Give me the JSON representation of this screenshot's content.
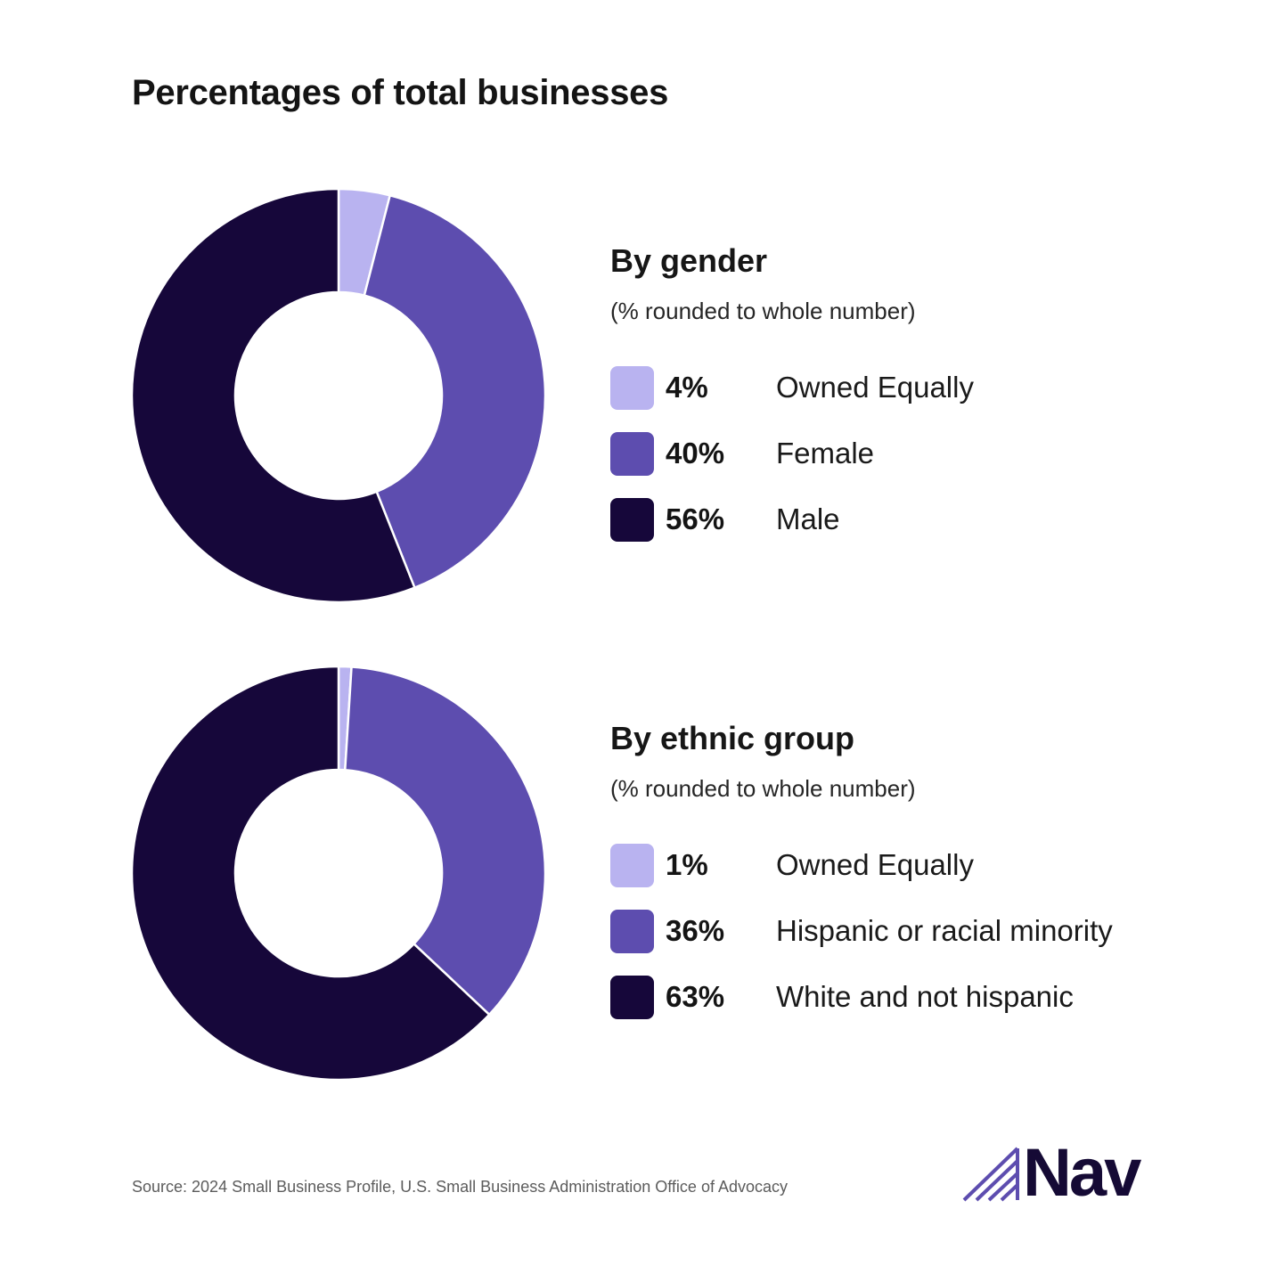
{
  "title": "Percentages of total businesses",
  "colors": {
    "owned_equally": "#b9b3f0",
    "middle": "#5d4daf",
    "majority": "#16073a"
  },
  "sections": [
    {
      "title": "By gender",
      "subtitle": "(% rounded to whole number)",
      "items": [
        {
          "pct": "4%",
          "label": "Owned Equally",
          "color": "#b9b3f0"
        },
        {
          "pct": "40%",
          "label": "Female",
          "color": "#5d4daf"
        },
        {
          "pct": "56%",
          "label": "Male",
          "color": "#16073a"
        }
      ]
    },
    {
      "title": "By ethnic group",
      "subtitle": "(% rounded to whole number)",
      "items": [
        {
          "pct": "1%",
          "label": "Owned Equally",
          "color": "#b9b3f0"
        },
        {
          "pct": "36%",
          "label": "Hispanic or racial minority",
          "color": "#5d4daf"
        },
        {
          "pct": "63%",
          "label": "White and not hispanic",
          "color": "#16073a"
        }
      ]
    }
  ],
  "chart_data": [
    {
      "type": "pie",
      "style": "donut",
      "title": "By gender",
      "categories": [
        "Owned Equally",
        "Female",
        "Male"
      ],
      "values": [
        4,
        40,
        56
      ],
      "colors": [
        "#b9b3f0",
        "#5d4daf",
        "#16073a"
      ],
      "legend": "right"
    },
    {
      "type": "pie",
      "style": "donut",
      "title": "By ethnic group",
      "categories": [
        "Owned Equally",
        "Hispanic or racial minority",
        "White and not hispanic"
      ],
      "values": [
        1,
        36,
        63
      ],
      "colors": [
        "#b9b3f0",
        "#5d4daf",
        "#16073a"
      ],
      "legend": "right"
    }
  ],
  "source": "Source: 2024 Small Business Profile, U.S. Small Business Administration Office of Advocacy",
  "logo": {
    "text": "Nav",
    "icon": "nav-logo-mark-icon",
    "color": "#150a35"
  }
}
